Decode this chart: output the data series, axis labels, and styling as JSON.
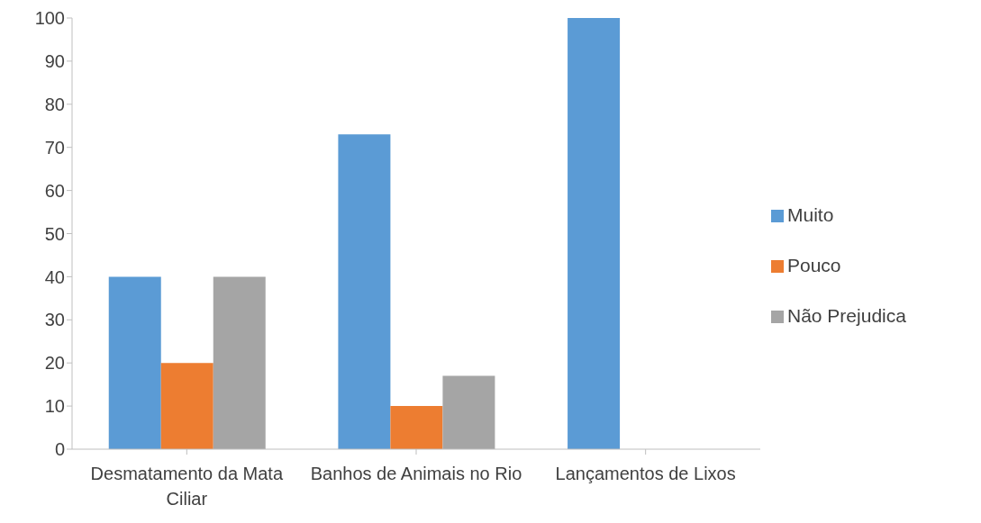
{
  "chart_data": {
    "type": "bar",
    "categories": [
      "Desmatamento da Mata Ciliar",
      "Banhos de Animais no Rio",
      "Lançamentos de Lixos"
    ],
    "series": [
      {
        "name": "Muito",
        "color": "#5b9bd5",
        "values": [
          40,
          73,
          100
        ]
      },
      {
        "name": "Pouco",
        "color": "#ed7d31",
        "values": [
          20,
          10,
          0
        ]
      },
      {
        "name": "Não Prejudica",
        "color": "#a5a5a5",
        "values": [
          40,
          17,
          0
        ]
      }
    ],
    "ylim": [
      0,
      100
    ],
    "yticks": [
      0,
      10,
      20,
      30,
      40,
      50,
      60,
      70,
      80,
      90,
      100
    ],
    "legend": "right"
  }
}
